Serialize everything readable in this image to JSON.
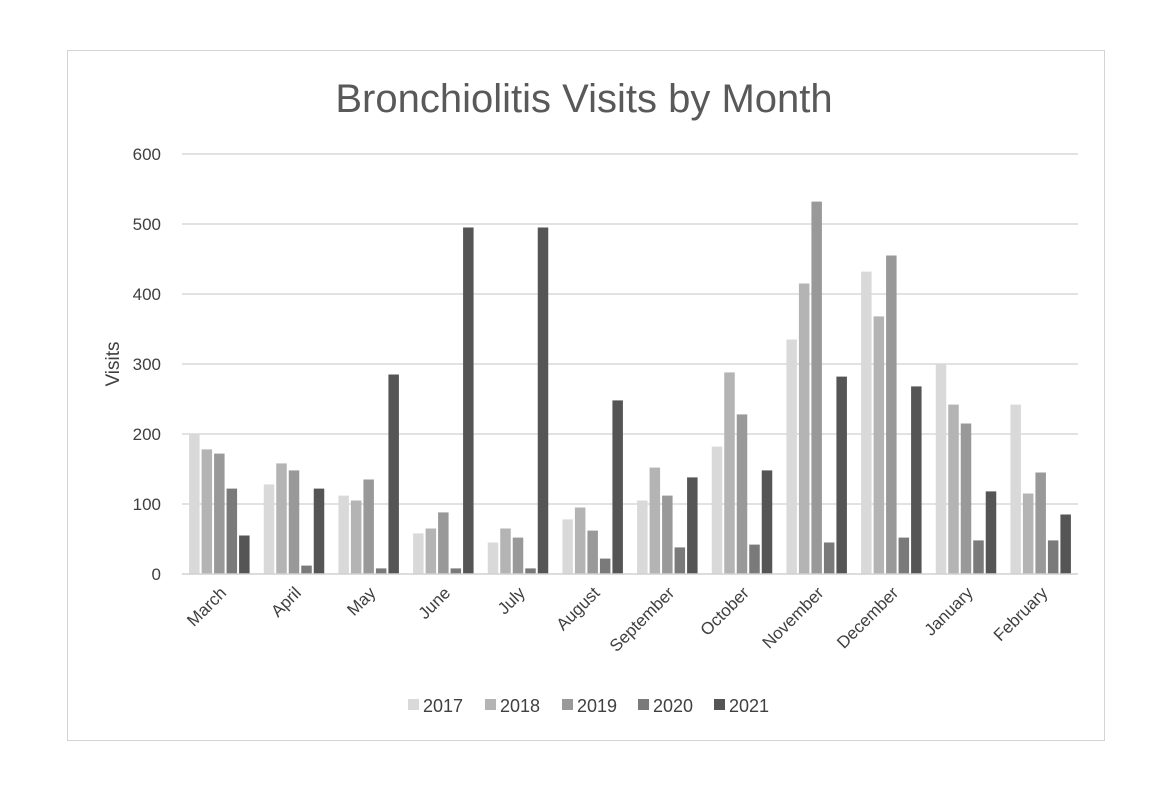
{
  "chart_data": {
    "type": "bar",
    "title": "Bronchiolitis Visits by Month",
    "xlabel": "",
    "ylabel": "Visits",
    "ylim": [
      0,
      600
    ],
    "yticks": [
      0,
      100,
      200,
      300,
      400,
      500,
      600
    ],
    "grid": true,
    "legend_position": "bottom",
    "categories": [
      "March",
      "April",
      "May",
      "June",
      "July",
      "August",
      "September",
      "October",
      "November",
      "December",
      "January",
      "February"
    ],
    "series": [
      {
        "name": "2017",
        "color": "#d9d9d9",
        "values": [
          200,
          128,
          112,
          58,
          45,
          78,
          105,
          182,
          335,
          432,
          300,
          242
        ]
      },
      {
        "name": "2018",
        "color": "#b4b4b4",
        "values": [
          178,
          158,
          105,
          65,
          65,
          95,
          152,
          288,
          415,
          368,
          242,
          115
        ]
      },
      {
        "name": "2019",
        "color": "#999999",
        "values": [
          172,
          148,
          135,
          88,
          52,
          62,
          112,
          228,
          532,
          455,
          215,
          145
        ]
      },
      {
        "name": "2020",
        "color": "#7a7a7a",
        "values": [
          122,
          12,
          8,
          8,
          8,
          22,
          38,
          42,
          45,
          52,
          48,
          48
        ]
      },
      {
        "name": "2021",
        "color": "#555555",
        "values": [
          55,
          122,
          285,
          495,
          495,
          248,
          138,
          148,
          282,
          268,
          118,
          85
        ]
      }
    ]
  }
}
